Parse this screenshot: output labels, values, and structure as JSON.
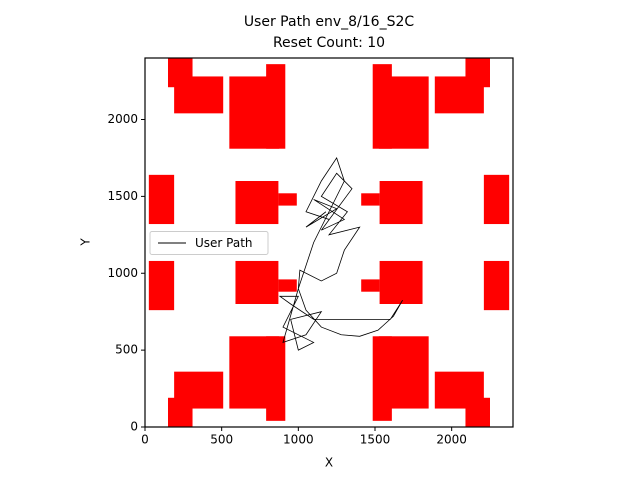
{
  "chart_data": {
    "type": "line",
    "title": "User Path env_8/16_S2C",
    "subtitle": "Reset Count: 10",
    "x_label": "X",
    "y_label": "Y",
    "xlim": [
      0,
      2400
    ],
    "ylim": [
      0,
      2400
    ],
    "xticks": [
      0,
      500,
      1000,
      1500,
      2000
    ],
    "yticks": [
      0,
      500,
      1000,
      1500,
      2000
    ],
    "legend": "center left",
    "obstacle_color": "#ff0000",
    "obstacles": [
      [
        150,
        0,
        310,
        190
      ],
      [
        190,
        120,
        510,
        360
      ],
      [
        550,
        120,
        875,
        590
      ],
      [
        790,
        40,
        915,
        590
      ],
      [
        25,
        760,
        190,
        1080
      ],
      [
        590,
        800,
        870,
        1080
      ],
      [
        870,
        880,
        990,
        960
      ],
      [
        150,
        2210,
        310,
        2400
      ],
      [
        190,
        2040,
        510,
        2280
      ],
      [
        550,
        1810,
        875,
        2280
      ],
      [
        790,
        1810,
        915,
        2360
      ],
      [
        25,
        1320,
        190,
        1640
      ],
      [
        590,
        1320,
        870,
        1600
      ],
      [
        870,
        1440,
        990,
        1520
      ],
      [
        2090,
        0,
        2250,
        190
      ],
      [
        1890,
        120,
        2210,
        360
      ],
      [
        1525,
        120,
        1850,
        590
      ],
      [
        1485,
        40,
        1610,
        590
      ],
      [
        2210,
        760,
        2375,
        1080
      ],
      [
        1530,
        800,
        1810,
        1080
      ],
      [
        1410,
        880,
        1530,
        960
      ],
      [
        2090,
        2210,
        2250,
        2400
      ],
      [
        1890,
        2040,
        2210,
        2280
      ],
      [
        1525,
        1810,
        1850,
        2280
      ],
      [
        1485,
        1810,
        1610,
        2360
      ],
      [
        2210,
        1320,
        2375,
        1640
      ],
      [
        1530,
        1320,
        1810,
        1600
      ],
      [
        1410,
        1440,
        1530,
        1520
      ]
    ],
    "x": [
      1180,
      1050,
      1250,
      1100,
      1300,
      1150,
      1350,
      1250,
      1150,
      1320,
      1200,
      1400,
      1300,
      1250,
      1150,
      1010,
      1000,
      1050,
      1150,
      1280,
      1400,
      1520,
      1620,
      1680,
      1600,
      1100,
      950,
      880,
      1000,
      900,
      1100,
      1000,
      950,
      1150,
      1050,
      900,
      1000,
      1100,
      1300,
      1250,
      1150,
      1050,
      1200
    ],
    "series": [
      {
        "name": "User Path",
        "color": "#000000",
        "values": [
          1400,
          1300,
          1420,
          1480,
          1350,
          1280,
          1550,
          1650,
          1500,
          1400,
          1250,
          1300,
          1150,
          1000,
          950,
          1020,
          900,
          760,
          650,
          600,
          590,
          630,
          720,
          825,
          700,
          700,
          800,
          850,
          850,
          650,
          550,
          500,
          700,
          750,
          600,
          550,
          900,
          1200,
          1600,
          1750,
          1600,
          1400,
          1350
        ]
      }
    ]
  }
}
